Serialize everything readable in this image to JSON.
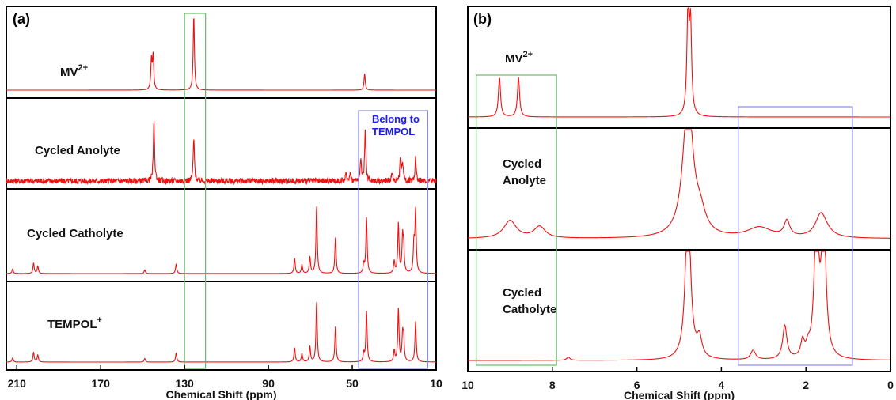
{
  "chart_data": [
    {
      "type": "line",
      "panel_label": "(a)",
      "xlabel": "Chemical Shift (ppm)",
      "xlim": [
        215,
        10
      ],
      "xticks": [
        210,
        170,
        130,
        90,
        50,
        10
      ],
      "xticklabels": [
        "210",
        "170",
        "130",
        "90",
        "50",
        "10"
      ],
      "series": [
        {
          "name": "MV2+",
          "label_main": "MV",
          "label_sup": "2+",
          "peaks": [
            [
              145.8,
              0.4
            ],
            [
              145.0,
              0.45
            ],
            [
              125.6,
              1.0
            ],
            [
              44.1,
              0.22
            ]
          ],
          "noise": 0.0
        },
        {
          "name": "Cycled Anolyte",
          "label_main": "Cycled Anolyte",
          "label_sup": "",
          "peaks": [
            [
              144.6,
              0.8
            ],
            [
              125.6,
              0.58
            ],
            [
              43.8,
              0.7
            ],
            [
              45.9,
              0.28
            ],
            [
              51.0,
              0.12
            ],
            [
              53.0,
              0.08
            ],
            [
              27.0,
              0.3
            ],
            [
              26.0,
              0.25
            ],
            [
              31.0,
              0.1
            ],
            [
              19.8,
              0.32
            ]
          ],
          "noise": 0.08
        },
        {
          "name": "Cycled Catholyte",
          "label_main": "Cycled Catholyte",
          "label_sup": "",
          "peaks": [
            [
              212.0,
              0.06
            ],
            [
              202.0,
              0.14
            ],
            [
              200.0,
              0.1
            ],
            [
              149.0,
              0.05
            ],
            [
              134.0,
              0.13
            ],
            [
              77.5,
              0.2
            ],
            [
              74.0,
              0.12
            ],
            [
              70.2,
              0.22
            ],
            [
              67.0,
              0.9
            ],
            [
              58.0,
              0.48
            ],
            [
              44.5,
              0.12
            ],
            [
              43.2,
              0.75
            ],
            [
              30.0,
              0.16
            ],
            [
              28.0,
              0.66
            ],
            [
              26.0,
              0.46
            ],
            [
              25.5,
              0.3
            ],
            [
              19.8,
              0.82
            ],
            [
              20.6,
              0.38
            ]
          ],
          "noise": 0.0
        },
        {
          "name": "TEMPOL+",
          "label_main": "TEMPOL",
          "label_sup": "+",
          "peaks": [
            [
              212.0,
              0.06
            ],
            [
              202.0,
              0.14
            ],
            [
              200.0,
              0.1
            ],
            [
              149.0,
              0.05
            ],
            [
              134.0,
              0.13
            ],
            [
              77.5,
              0.2
            ],
            [
              74.0,
              0.12
            ],
            [
              70.2,
              0.22
            ],
            [
              67.0,
              0.85
            ],
            [
              58.0,
              0.5
            ],
            [
              44.5,
              0.12
            ],
            [
              43.2,
              0.72
            ],
            [
              30.0,
              0.16
            ],
            [
              28.0,
              0.74
            ],
            [
              26.0,
              0.36
            ],
            [
              25.5,
              0.3
            ],
            [
              19.8,
              0.57
            ]
          ],
          "noise": 0.0
        }
      ],
      "annotations": [
        {
          "text": "Belong to",
          "line2": "TEMPOL",
          "color": "#1a1aff"
        }
      ],
      "highlight_boxes": [
        {
          "ppm_range": [
            130,
            120
          ],
          "color": "#66bb66"
        },
        {
          "ppm_range": [
            47,
            14
          ],
          "color": "#8888ee"
        }
      ]
    },
    {
      "type": "line",
      "panel_label": "(b)",
      "xlabel": "Chemical Shift (ppm)",
      "xlim": [
        10,
        0
      ],
      "xticks": [
        10,
        8,
        6,
        4,
        2,
        0
      ],
      "xticklabels": [
        "10",
        "8",
        "6",
        "4",
        "2",
        "0"
      ],
      "series": [
        {
          "name": "MV2+",
          "label_main": "MV",
          "label_sup": "2+",
          "peaks": [
            [
              9.25,
              0.38,
              0.03
            ],
            [
              8.8,
              0.38,
              0.03
            ],
            [
              4.79,
              1.0,
              0.03
            ],
            [
              4.73,
              0.85,
              0.03
            ]
          ]
        },
        {
          "name": "Cycled Anolyte",
          "label_main": "Cycled",
          "label2": "Anolyte",
          "label_sup": "",
          "peaks": [
            [
              9.0,
              0.17,
              0.18
            ],
            [
              8.3,
              0.11,
              0.16
            ],
            [
              4.79,
              1.35,
              0.14
            ],
            [
              4.5,
              0.18,
              0.15
            ],
            [
              3.1,
              0.1,
              0.35
            ],
            [
              2.45,
              0.15,
              0.08
            ],
            [
              1.65,
              0.2,
              0.15
            ],
            [
              1.55,
              0.05,
              0.2
            ]
          ]
        },
        {
          "name": "Cycled Catholyte",
          "label_main": "Cycled",
          "label2": "Catholyte",
          "label_sup": "",
          "peaks": [
            [
              7.62,
              0.03,
              0.05
            ],
            [
              4.79,
              1.6,
              0.07
            ],
            [
              4.52,
              0.18,
              0.07
            ],
            [
              3.25,
              0.09,
              0.07
            ],
            [
              2.5,
              0.32,
              0.06
            ],
            [
              2.08,
              0.15,
              0.05
            ],
            [
              1.95,
              0.08,
              0.05
            ],
            [
              1.75,
              1.4,
              0.06
            ],
            [
              1.58,
              1.4,
              0.06
            ]
          ]
        }
      ],
      "highlight_boxes": [
        {
          "ppm_range": [
            9.8,
            7.9
          ],
          "color": "#66bb66"
        },
        {
          "ppm_range": [
            3.6,
            0.9
          ],
          "color": "#8888ee"
        }
      ]
    }
  ]
}
